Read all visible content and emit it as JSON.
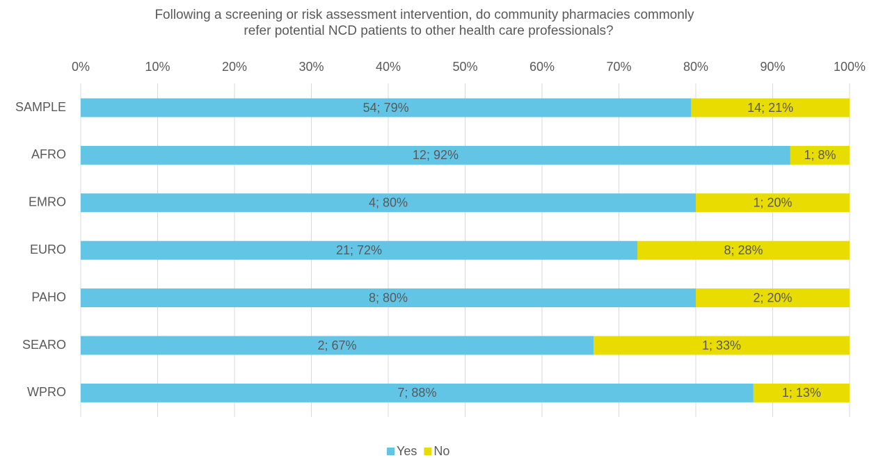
{
  "chart_data": {
    "type": "stacked-barh",
    "title": [
      "Following a screening or risk assessment intervention, do community pharmacies commonly",
      "refer potential NCD patients to other health care professionals?"
    ],
    "categories": [
      "SAMPLE",
      "AFRO",
      "EMRO",
      "EURO",
      "PAHO",
      "SEARO",
      "WPRO"
    ],
    "series": [
      {
        "name": "Yes",
        "color": "#63c5e6",
        "values": [
          79.4,
          92.3,
          80,
          72.4,
          80,
          66.7,
          87.5
        ],
        "value_labels": [
          "54; 79%",
          "12; 92%",
          "4; 80%",
          "21; 72%",
          "8; 80%",
          "2; 67%",
          "7; 88%"
        ]
      },
      {
        "name": "No",
        "color": "#e9dc00",
        "values": [
          20.6,
          7.7,
          20,
          27.6,
          20,
          33.3,
          12.5
        ],
        "value_labels": [
          "14; 21%",
          "1; 8%",
          "1; 20%",
          "8; 28%",
          "2; 20%",
          "1; 33%",
          "1; 13%"
        ]
      }
    ],
    "xlim": [
      0,
      100
    ],
    "xticks": [
      {
        "value": 0,
        "label": "0%"
      },
      {
        "value": 10,
        "label": "10%"
      },
      {
        "value": 20,
        "label": "20%"
      },
      {
        "value": 30,
        "label": "30%"
      },
      {
        "value": 40,
        "label": "40%"
      },
      {
        "value": 50,
        "label": "50%"
      },
      {
        "value": 60,
        "label": "60%"
      },
      {
        "value": 70,
        "label": "70%"
      },
      {
        "value": 80,
        "label": "80%"
      },
      {
        "value": 90,
        "label": "90%"
      },
      {
        "value": 100,
        "label": "100%"
      }
    ],
    "grid": true,
    "legend": "bottom"
  }
}
